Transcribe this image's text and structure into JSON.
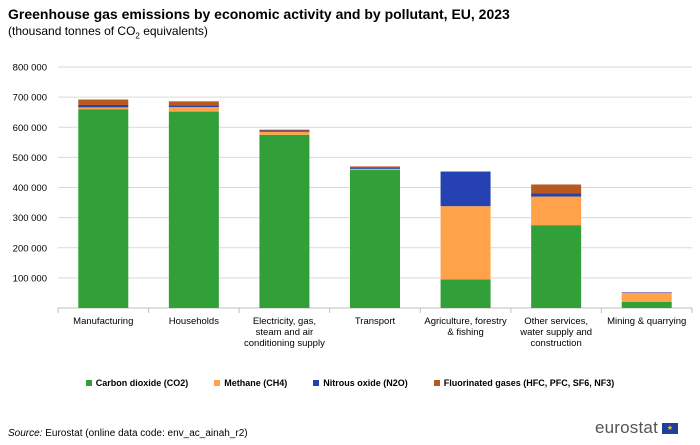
{
  "chart_data": {
    "type": "bar",
    "stacked": true,
    "title": "Greenhouse gas emissions by economic activity and by pollutant, EU, 2023",
    "subtitle_pre": "(thousand  tonnes of CO",
    "subtitle_sub": "2",
    "subtitle_post": " equivalents)",
    "ylim": [
      0,
      800000
    ],
    "yticks": [
      100000,
      200000,
      300000,
      400000,
      500000,
      600000,
      700000,
      800000
    ],
    "ytick_labels": [
      "100 000",
      "200 000",
      "300 000",
      "400 000",
      "500 000",
      "600 000",
      "700 000",
      "800 000"
    ],
    "grid": true,
    "categories": [
      [
        "Manufacturing"
      ],
      [
        "Households"
      ],
      [
        "Electricity, gas,",
        "steam and air",
        "conditioning supply"
      ],
      [
        "Transport"
      ],
      [
        "Agriculture, forestry",
        "& fishing"
      ],
      [
        "Other services,",
        "water supply and",
        "construction"
      ],
      [
        "Mining & quarrying"
      ]
    ],
    "series": [
      {
        "name": "Carbon dioxide (CO2)",
        "color": "#31a039",
        "values": [
          660000,
          652000,
          575000,
          458000,
          95000,
          275000,
          20000
        ]
      },
      {
        "name": "Methane (CH4)",
        "color": "#ffa24a",
        "values": [
          6000,
          15000,
          10000,
          4000,
          243000,
          95000,
          30000
        ]
      },
      {
        "name": "Nitrous oxide (N2O)",
        "color": "#2541b2",
        "values": [
          8000,
          6000,
          4000,
          5000,
          115000,
          10000,
          1500
        ]
      },
      {
        "name": "Fluorinated gases (HFC, PFC, SF6, NF3)",
        "color": "#b85a1e",
        "values": [
          18000,
          13000,
          3000,
          3000,
          0,
          30000,
          500
        ]
      }
    ],
    "legend_position": "bottom"
  },
  "source": {
    "label": "Source:",
    "text": " Eurostat (online data code: env_ac_ainah_r2)"
  },
  "logo": {
    "text": "eurostat",
    "flag_glyph": "★"
  }
}
